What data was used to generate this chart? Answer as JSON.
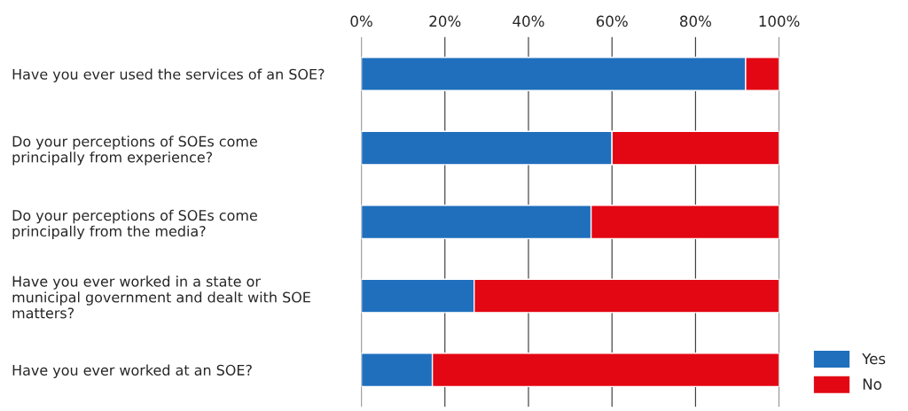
{
  "chart_data": {
    "type": "bar",
    "orientation": "horizontal",
    "stacked": true,
    "categories": [
      "Have you ever used the services of an SOE?",
      "Do your perceptions of SOEs come\nprincipally from experience?",
      "Do your perceptions of SOEs come\nprincipally from the media?",
      "Have you ever worked in a state or\nmunicipal government and dealt with SOE\nmatters?",
      "Have you ever worked at an SOE?"
    ],
    "series": [
      {
        "name": "Yes",
        "color": "#1f6fbd",
        "values": [
          92,
          60,
          55,
          27,
          17
        ]
      },
      {
        "name": "No",
        "color": "#e30613",
        "values": [
          8,
          40,
          45,
          73,
          83
        ]
      }
    ],
    "xlim": [
      0,
      100
    ],
    "xticks": [
      {
        "value": 0,
        "label": "0%"
      },
      {
        "value": 20,
        "label": "20%"
      },
      {
        "value": 40,
        "label": "40%"
      },
      {
        "value": 60,
        "label": "60%"
      },
      {
        "value": 80,
        "label": "80%"
      },
      {
        "value": 100,
        "label": "100%"
      }
    ],
    "grid": "x",
    "legend": "bottom right"
  }
}
